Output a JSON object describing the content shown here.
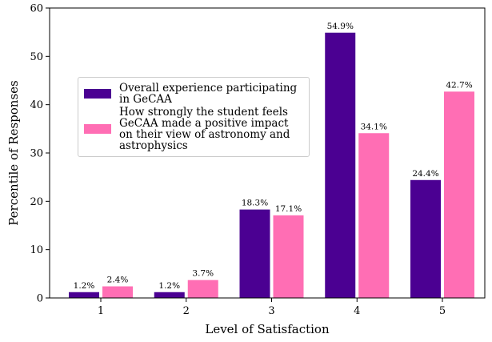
{
  "chart_data": {
    "type": "bar",
    "xlabel": "Level of Satisfaction",
    "ylabel": "Percentile of Responses",
    "categories": [
      "1",
      "2",
      "3",
      "4",
      "5"
    ],
    "series": [
      {
        "name": "Overall experience participating in GeCAA",
        "color": "#4b0092",
        "values": [
          1.2,
          1.2,
          18.3,
          54.9,
          24.4
        ],
        "value_labels": [
          "1.2%",
          "1.2%",
          "18.3%",
          "54.9%",
          "24.4%"
        ]
      },
      {
        "name": "How strongly the student feels GeCAA made a positive impact on their view of astronomy and astrophysics",
        "color": "#ff6eb4",
        "values": [
          2.4,
          3.7,
          17.1,
          34.1,
          42.7
        ],
        "value_labels": [
          "2.4%",
          "3.7%",
          "17.1%",
          "34.1%",
          "42.7%"
        ]
      }
    ],
    "ylim": [
      0,
      60
    ],
    "yticks": [
      0,
      10,
      20,
      30,
      40,
      50,
      60
    ],
    "legend": "upper left"
  }
}
